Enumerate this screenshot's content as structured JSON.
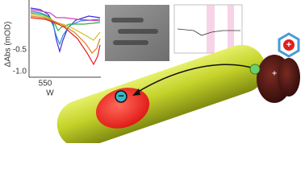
{
  "spectra_panel": {
    "y_label": "ΔAbs (mOD)",
    "y_tick_labels": [
      "-0.5",
      "-1.0"
    ],
    "x_tick_label": "550",
    "x_label": "W"
  },
  "particles": {
    "electron": "−",
    "hole": "+",
    "free_hole": "+"
  }
}
